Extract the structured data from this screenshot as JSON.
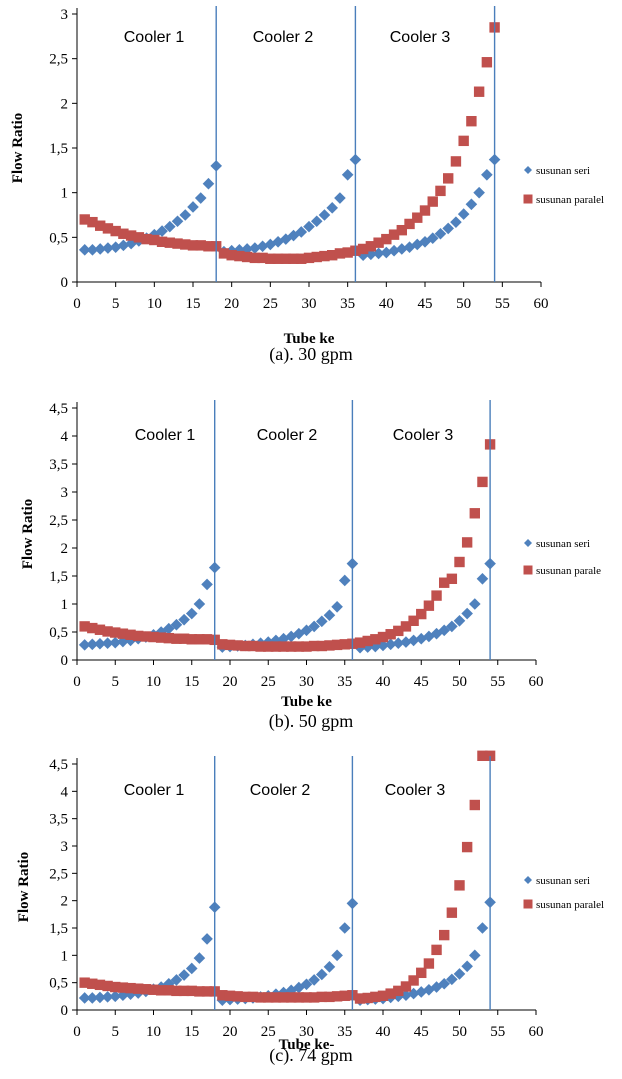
{
  "colors": {
    "seri": "#4f81bd",
    "paralel": "#c0504d",
    "divider": "#4a7ebb",
    "axis": "#000000"
  },
  "chart_data": [
    {
      "type": "scatter",
      "caption": "(a). 30 gpm",
      "xlabel": "Tube ke",
      "ylabel": "Flow Ratio",
      "xlim": [
        0,
        60
      ],
      "ylim": [
        0,
        3
      ],
      "x_ticks": [
        "0",
        "5",
        "10",
        "15",
        "20",
        "25",
        "30",
        "35",
        "40",
        "45",
        "50",
        "55",
        "60"
      ],
      "y_ticks": [
        "0",
        "0,5",
        "1",
        "1,5",
        "2",
        "2,5",
        "3"
      ],
      "cooler_labels": [
        "Cooler 1",
        "Cooler 2",
        "Cooler 3"
      ],
      "dividers": [
        18,
        36,
        54
      ],
      "grid": false,
      "legend_position": "right",
      "series": [
        {
          "name": "susunan seri",
          "marker": "diamond",
          "x": [
            1,
            2,
            3,
            4,
            5,
            6,
            7,
            8,
            9,
            10,
            11,
            12,
            13,
            14,
            15,
            16,
            17,
            18,
            19,
            20,
            21,
            22,
            23,
            24,
            25,
            26,
            27,
            28,
            29,
            30,
            31,
            32,
            33,
            34,
            35,
            36,
            37,
            38,
            39,
            40,
            41,
            42,
            43,
            44,
            45,
            46,
            47,
            48,
            49,
            50,
            51,
            52,
            53,
            54
          ],
          "y": [
            0.36,
            0.36,
            0.37,
            0.38,
            0.39,
            0.41,
            0.43,
            0.46,
            0.49,
            0.53,
            0.57,
            0.62,
            0.68,
            0.75,
            0.84,
            0.94,
            1.1,
            1.3,
            0.34,
            0.35,
            0.36,
            0.37,
            0.38,
            0.4,
            0.42,
            0.45,
            0.48,
            0.52,
            0.56,
            0.62,
            0.68,
            0.75,
            0.83,
            0.94,
            1.2,
            1.37,
            0.3,
            0.31,
            0.32,
            0.33,
            0.35,
            0.37,
            0.39,
            0.42,
            0.45,
            0.49,
            0.54,
            0.6,
            0.67,
            0.76,
            0.87,
            1.0,
            1.2,
            1.37
          ]
        },
        {
          "name": "susunan paralel",
          "marker": "square",
          "x": [
            1,
            2,
            3,
            4,
            5,
            6,
            7,
            8,
            9,
            10,
            11,
            12,
            13,
            14,
            15,
            16,
            17,
            18,
            19,
            20,
            21,
            22,
            23,
            24,
            25,
            26,
            27,
            28,
            29,
            30,
            31,
            32,
            33,
            34,
            35,
            36,
            37,
            38,
            39,
            40,
            41,
            42,
            43,
            44,
            45,
            46,
            47,
            48,
            49,
            50,
            51,
            52,
            53,
            54
          ],
          "y": [
            0.7,
            0.67,
            0.63,
            0.6,
            0.57,
            0.54,
            0.52,
            0.5,
            0.48,
            0.47,
            0.45,
            0.44,
            0.43,
            0.42,
            0.41,
            0.41,
            0.4,
            0.4,
            0.32,
            0.3,
            0.29,
            0.28,
            0.27,
            0.27,
            0.26,
            0.26,
            0.26,
            0.26,
            0.26,
            0.27,
            0.28,
            0.29,
            0.3,
            0.32,
            0.33,
            0.35,
            0.37,
            0.4,
            0.44,
            0.48,
            0.53,
            0.58,
            0.65,
            0.72,
            0.8,
            0.9,
            1.02,
            1.16,
            1.35,
            1.58,
            1.8,
            2.13,
            2.46,
            2.85
          ]
        }
      ]
    },
    {
      "type": "scatter",
      "caption": "(b). 50 gpm",
      "xlabel": "Tube ke",
      "ylabel": "Flow Ratio",
      "xlim": [
        0,
        60
      ],
      "ylim": [
        0,
        4.5
      ],
      "x_ticks": [
        "0",
        "5",
        "10",
        "15",
        "20",
        "25",
        "30",
        "35",
        "40",
        "45",
        "50",
        "55",
        "60"
      ],
      "y_ticks": [
        "0",
        "0,5",
        "1",
        "1,5",
        "2",
        "2,5",
        "3",
        "3,5",
        "4",
        "4,5"
      ],
      "cooler_labels": [
        "Cooler 1",
        "Cooler 2",
        "Cooler 3"
      ],
      "dividers": [
        18,
        36,
        54
      ],
      "grid": false,
      "legend_position": "right",
      "series": [
        {
          "name": "susunan seri",
          "marker": "diamond",
          "x": [
            1,
            2,
            3,
            4,
            5,
            6,
            7,
            8,
            9,
            10,
            11,
            12,
            13,
            14,
            15,
            16,
            17,
            18,
            19,
            20,
            21,
            22,
            23,
            24,
            25,
            26,
            27,
            28,
            29,
            30,
            31,
            32,
            33,
            34,
            35,
            36,
            37,
            38,
            39,
            40,
            41,
            42,
            43,
            44,
            45,
            46,
            47,
            48,
            49,
            50,
            51,
            52,
            53,
            54
          ],
          "y": [
            0.27,
            0.28,
            0.29,
            0.3,
            0.31,
            0.33,
            0.35,
            0.38,
            0.41,
            0.45,
            0.5,
            0.56,
            0.63,
            0.72,
            0.83,
            1.0,
            1.35,
            1.65,
            0.23,
            0.24,
            0.25,
            0.26,
            0.28,
            0.3,
            0.32,
            0.35,
            0.38,
            0.42,
            0.47,
            0.53,
            0.6,
            0.69,
            0.8,
            0.95,
            1.42,
            1.72,
            0.22,
            0.23,
            0.24,
            0.26,
            0.28,
            0.3,
            0.32,
            0.35,
            0.38,
            0.42,
            0.47,
            0.53,
            0.6,
            0.7,
            0.83,
            1.0,
            1.45,
            1.72
          ]
        },
        {
          "name": "susunan parale",
          "marker": "square",
          "x": [
            1,
            2,
            3,
            4,
            5,
            6,
            7,
            8,
            9,
            10,
            11,
            12,
            13,
            14,
            15,
            16,
            17,
            18,
            19,
            20,
            21,
            22,
            23,
            24,
            25,
            26,
            27,
            28,
            29,
            30,
            31,
            32,
            33,
            34,
            35,
            36,
            37,
            38,
            39,
            40,
            41,
            42,
            43,
            44,
            45,
            46,
            47,
            48,
            49,
            50,
            51,
            52,
            53,
            54
          ],
          "y": [
            0.6,
            0.57,
            0.54,
            0.51,
            0.49,
            0.47,
            0.45,
            0.43,
            0.42,
            0.41,
            0.4,
            0.39,
            0.38,
            0.38,
            0.37,
            0.37,
            0.37,
            0.36,
            0.28,
            0.27,
            0.26,
            0.25,
            0.25,
            0.24,
            0.24,
            0.24,
            0.24,
            0.24,
            0.24,
            0.24,
            0.25,
            0.25,
            0.26,
            0.27,
            0.28,
            0.29,
            0.31,
            0.34,
            0.37,
            0.41,
            0.46,
            0.52,
            0.6,
            0.7,
            0.82,
            0.97,
            1.15,
            1.38,
            1.45,
            1.75,
            2.1,
            2.62,
            3.18,
            3.85
          ]
        }
      ]
    },
    {
      "type": "scatter",
      "caption": "(c). 74 gpm",
      "xlabel": "Tube ke-",
      "ylabel": "Flow Ratio",
      "xlim": [
        0,
        60
      ],
      "ylim": [
        0,
        4.5
      ],
      "x_ticks": [
        "0",
        "5",
        "10",
        "15",
        "20",
        "25",
        "30",
        "35",
        "40",
        "45",
        "50",
        "55",
        "60"
      ],
      "y_ticks": [
        "0",
        "0,5",
        "1",
        "1,5",
        "2",
        "2,5",
        "3",
        "3,5",
        "4",
        "4,5"
      ],
      "cooler_labels": [
        "Cooler 1",
        "Cooler 2",
        "Cooler 3"
      ],
      "dividers": [
        18,
        36,
        54
      ],
      "grid": false,
      "legend_position": "right",
      "series": [
        {
          "name": "susunan seri",
          "marker": "diamond",
          "x": [
            1,
            2,
            3,
            4,
            5,
            6,
            7,
            8,
            9,
            10,
            11,
            12,
            13,
            14,
            15,
            16,
            17,
            18,
            19,
            20,
            21,
            22,
            23,
            24,
            25,
            26,
            27,
            28,
            29,
            30,
            31,
            32,
            33,
            34,
            35,
            36,
            37,
            38,
            39,
            40,
            41,
            42,
            43,
            44,
            45,
            46,
            47,
            48,
            49,
            50,
            51,
            52,
            53,
            54
          ],
          "y": [
            0.22,
            0.22,
            0.23,
            0.24,
            0.25,
            0.27,
            0.29,
            0.31,
            0.34,
            0.38,
            0.42,
            0.48,
            0.55,
            0.64,
            0.76,
            0.95,
            1.3,
            1.88,
            0.18,
            0.19,
            0.2,
            0.21,
            0.22,
            0.24,
            0.26,
            0.29,
            0.32,
            0.36,
            0.41,
            0.47,
            0.55,
            0.65,
            0.79,
            1.0,
            1.5,
            1.95,
            0.18,
            0.19,
            0.2,
            0.21,
            0.23,
            0.25,
            0.27,
            0.3,
            0.33,
            0.37,
            0.42,
            0.48,
            0.56,
            0.66,
            0.8,
            1.0,
            1.5,
            1.97
          ]
        },
        {
          "name": "susunan paralel",
          "marker": "square",
          "x": [
            1,
            2,
            3,
            4,
            5,
            6,
            7,
            8,
            9,
            10,
            11,
            12,
            13,
            14,
            15,
            16,
            17,
            18,
            19,
            20,
            21,
            22,
            23,
            24,
            25,
            26,
            27,
            28,
            29,
            30,
            31,
            32,
            33,
            34,
            35,
            36,
            37,
            38,
            39,
            40,
            41,
            42,
            43,
            44,
            45,
            46,
            47,
            48,
            49,
            50,
            51,
            52,
            53,
            54
          ],
          "y": [
            0.5,
            0.48,
            0.46,
            0.44,
            0.42,
            0.41,
            0.4,
            0.39,
            0.38,
            0.37,
            0.36,
            0.36,
            0.35,
            0.35,
            0.35,
            0.34,
            0.34,
            0.34,
            0.27,
            0.26,
            0.25,
            0.24,
            0.24,
            0.23,
            0.23,
            0.23,
            0.23,
            0.23,
            0.23,
            0.23,
            0.23,
            0.24,
            0.24,
            0.25,
            0.26,
            0.27,
            0.21,
            0.22,
            0.24,
            0.26,
            0.3,
            0.35,
            0.43,
            0.54,
            0.68,
            0.85,
            1.1,
            1.37,
            1.78,
            2.28,
            2.98,
            3.75,
            4.65,
            4.65
          ]
        }
      ]
    }
  ]
}
